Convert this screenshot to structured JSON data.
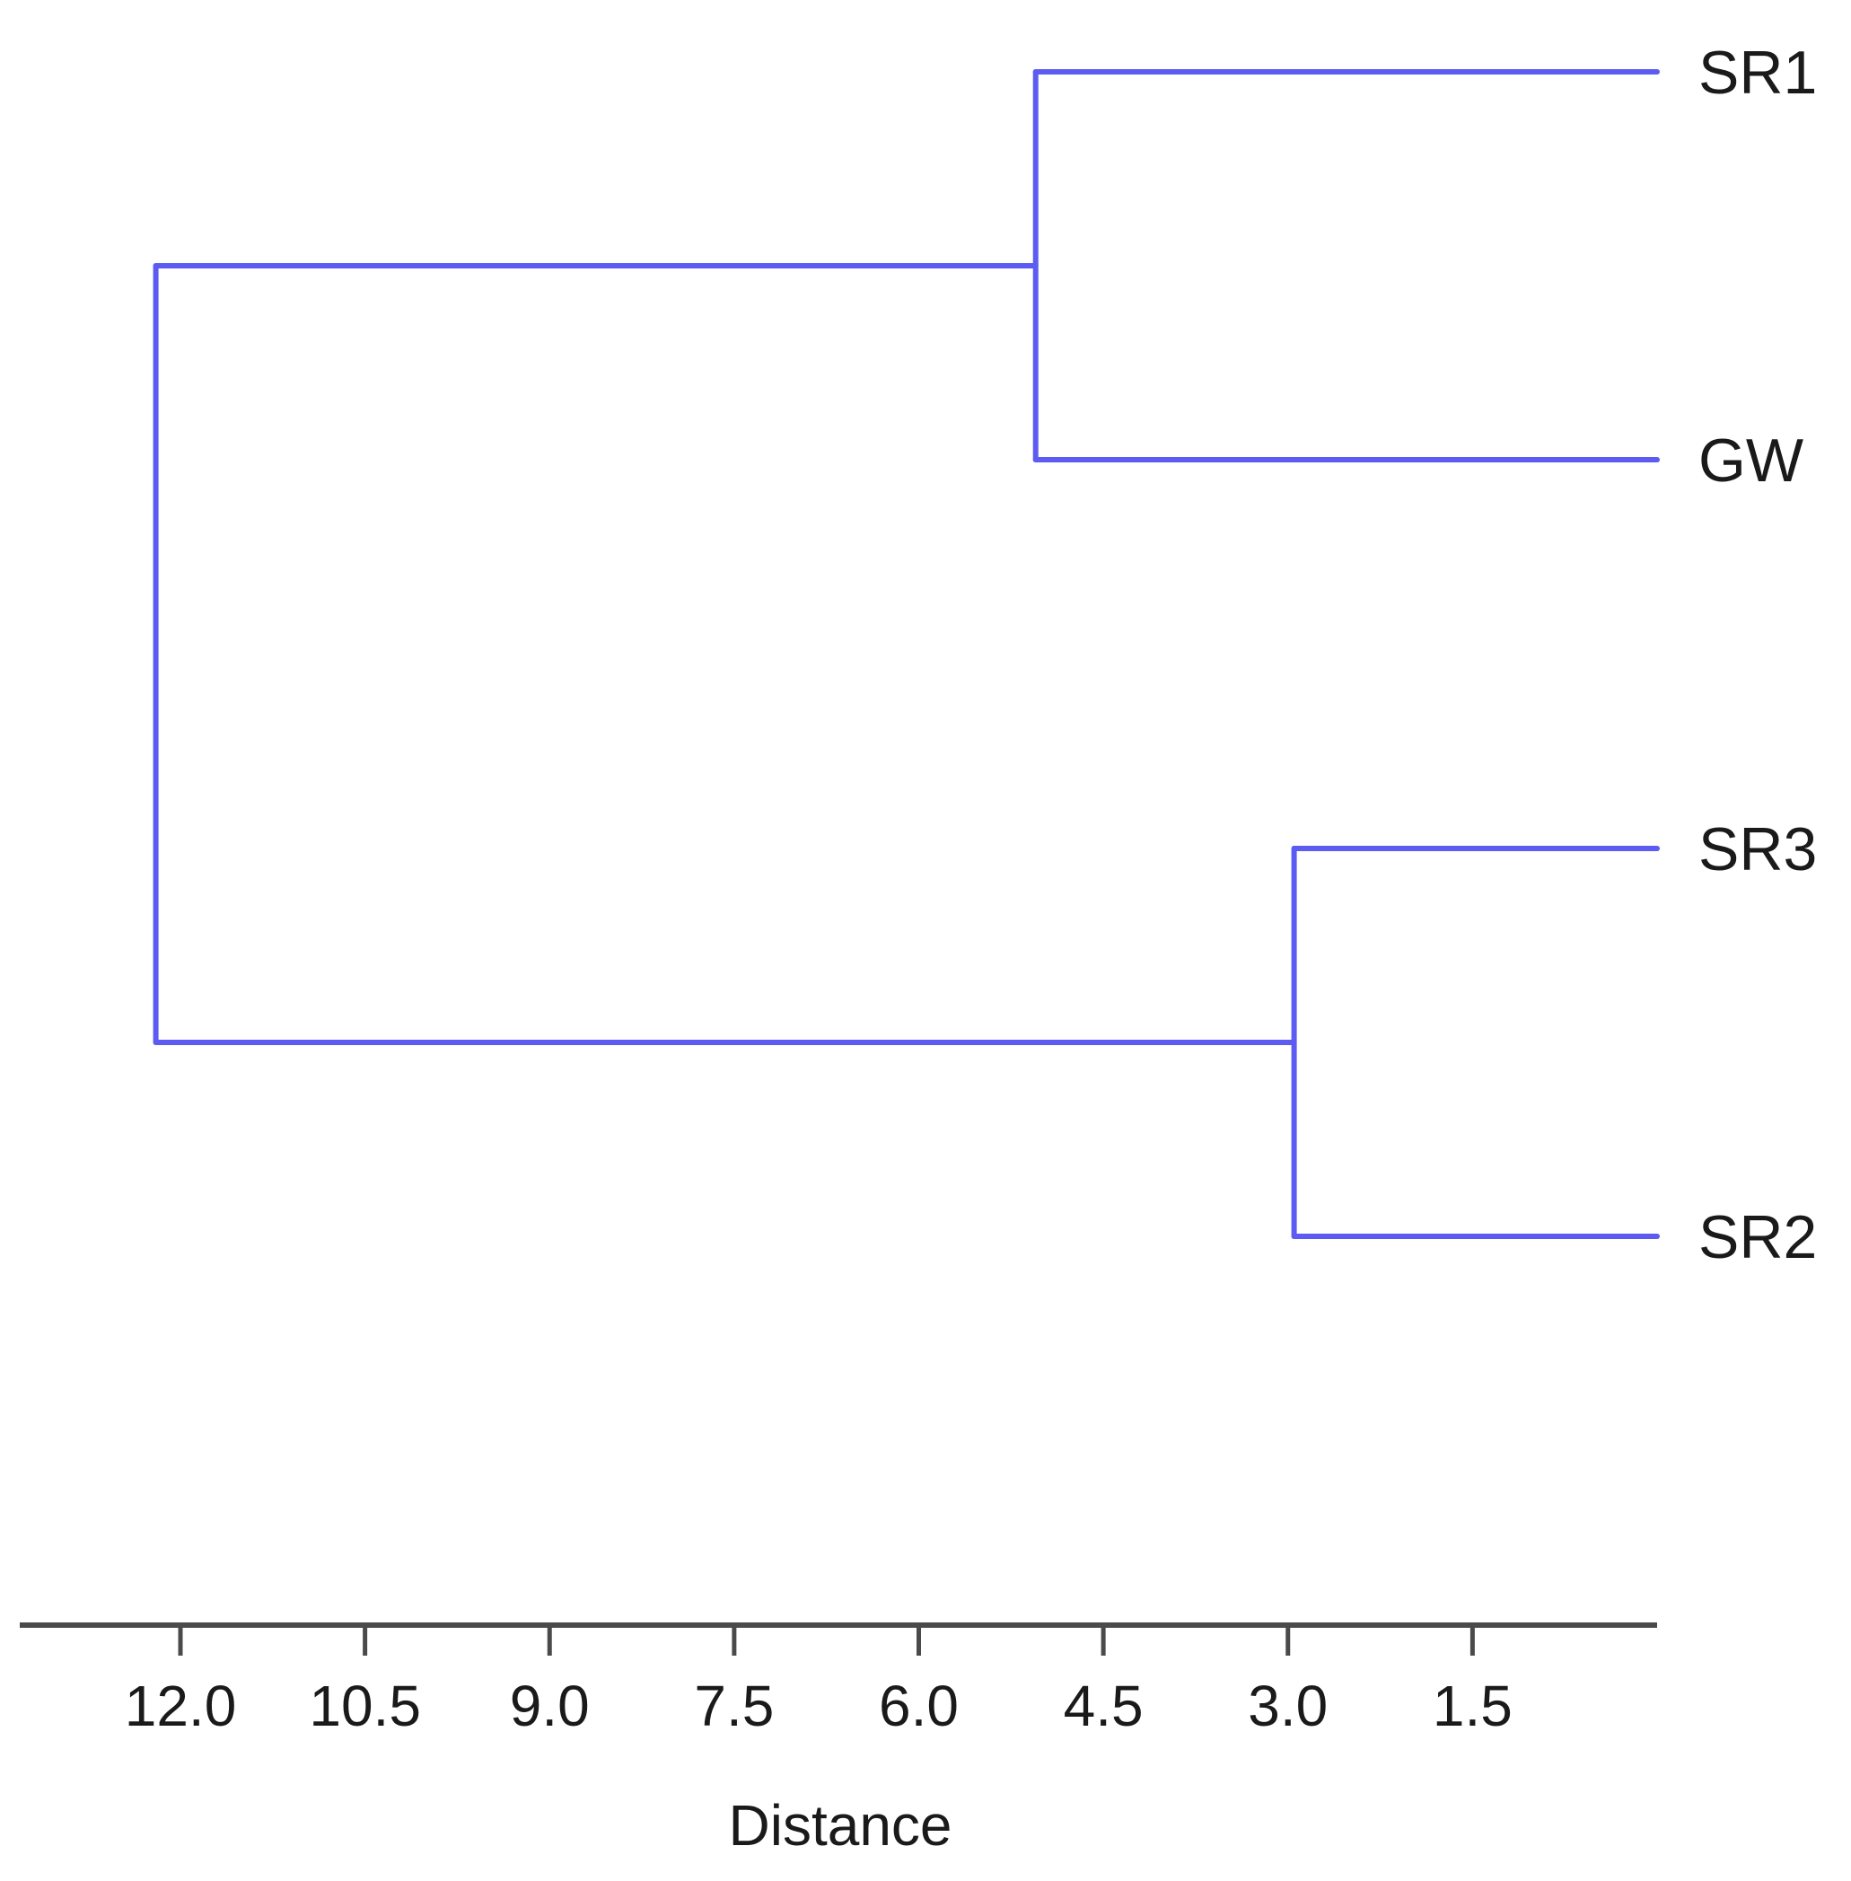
{
  "chart_data": {
    "type": "dendrogram",
    "orientation": "leaves-right",
    "xlabel": "Distance",
    "xlim": [
      13.0,
      0.0
    ],
    "xticks": [
      12.0,
      10.5,
      9.0,
      7.5,
      6.0,
      4.5,
      3.0,
      1.5
    ],
    "tick_labels": [
      "12.0",
      "10.5",
      "9.0",
      "7.5",
      "6.0",
      "4.5",
      "3.0",
      "1.5"
    ],
    "leaves": [
      "SR1",
      "GW",
      "SR3",
      "SR2"
    ],
    "merges": [
      {
        "id": "c1",
        "children": [
          "SR1",
          "GW"
        ],
        "distance": 5.05
      },
      {
        "id": "c2",
        "children": [
          "SR3",
          "SR2"
        ],
        "distance": 2.95
      },
      {
        "id": "root",
        "children": [
          "c1",
          "c2"
        ],
        "distance": 12.2
      }
    ],
    "line_color": "#5c5cf2",
    "grid": false
  }
}
